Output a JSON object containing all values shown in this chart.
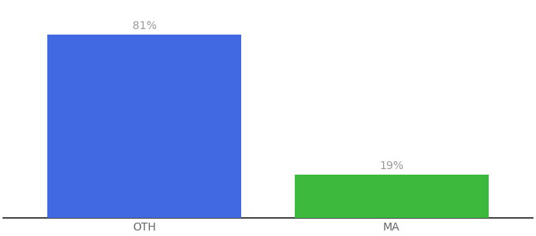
{
  "categories": [
    "OTH",
    "MA"
  ],
  "values": [
    81,
    19
  ],
  "bar_colors": [
    "#4169e1",
    "#3dba3d"
  ],
  "label_texts": [
    "81%",
    "19%"
  ],
  "background_color": "#ffffff",
  "bar_width": 0.55,
  "x_positions": [
    0.3,
    1.0
  ],
  "xlim": [
    -0.1,
    1.4
  ],
  "ylim": [
    0,
    95
  ],
  "label_fontsize": 10,
  "tick_fontsize": 10,
  "label_color": "#999999",
  "tick_color": "#666666"
}
